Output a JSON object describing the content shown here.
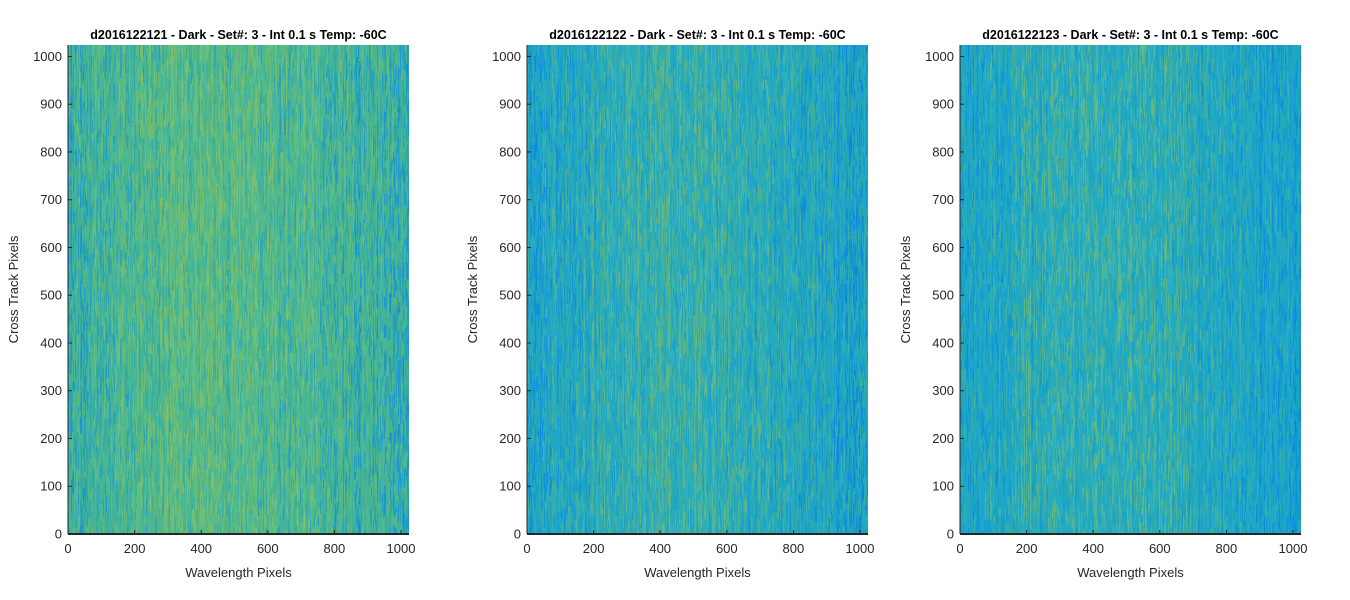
{
  "chart_data": [
    {
      "type": "heatmap",
      "title": "d2016122121 - Dark - Set#: 3 - Int 0.1 s Temp: -60C",
      "xlabel": "Wavelength Pixels",
      "ylabel": "Cross Track Pixels",
      "xlim": [
        0,
        1024
      ],
      "ylim": [
        0,
        1024
      ],
      "xticks": [
        0,
        200,
        400,
        600,
        800,
        1000
      ],
      "yticks": [
        0,
        100,
        200,
        300,
        400,
        500,
        600,
        700,
        800,
        900,
        1000
      ],
      "grid": false,
      "colormap": "parula",
      "base_color": "#3fb19a",
      "mid_color": "#60bf82",
      "low_color": "#1a98cf",
      "high_color": "#a6c850"
    },
    {
      "type": "heatmap",
      "title": "d2016122122 - Dark - Set#: 3 - Int 0.1 s Temp: -60C",
      "xlabel": "Wavelength Pixels",
      "ylabel": "Cross Track Pixels",
      "xlim": [
        0,
        1024
      ],
      "ylim": [
        0,
        1024
      ],
      "xticks": [
        0,
        200,
        400,
        600,
        800,
        1000
      ],
      "yticks": [
        0,
        100,
        200,
        300,
        400,
        500,
        600,
        700,
        800,
        900,
        1000
      ],
      "grid": false,
      "colormap": "parula",
      "base_color": "#1fa7c4",
      "mid_color": "#38b2a8",
      "low_color": "#0f8ed9",
      "high_color": "#8ec25f"
    },
    {
      "type": "heatmap",
      "title": "d2016122123 - Dark - Set#: 3 - Int 0.1 s Temp: -60C",
      "xlabel": "Wavelength Pixels",
      "ylabel": "Cross Track Pixels",
      "xlim": [
        0,
        1024
      ],
      "ylim": [
        0,
        1024
      ],
      "xticks": [
        0,
        200,
        400,
        600,
        800,
        1000
      ],
      "yticks": [
        0,
        100,
        200,
        300,
        400,
        500,
        600,
        700,
        800,
        900,
        1000
      ],
      "grid": false,
      "colormap": "parula",
      "base_color": "#1ca6c8",
      "mid_color": "#2fafb4",
      "low_color": "#0e90d8",
      "high_color": "#8fc35c"
    }
  ]
}
